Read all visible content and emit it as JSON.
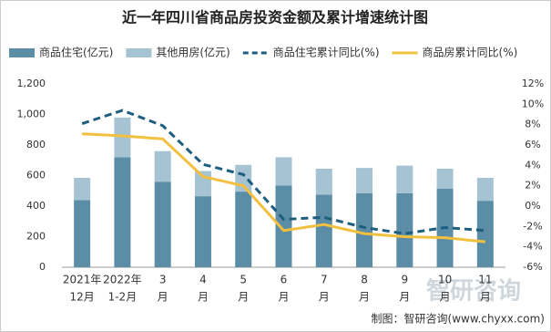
{
  "chart_data": {
    "type": "bar",
    "stacked": true,
    "title": "近一年四川省商品房投资金额及累计增速统计图",
    "source": "制图：智研咨询(www.chyxx.com)",
    "watermark": "智研咨询",
    "categories": [
      [
        "2021年",
        "12月"
      ],
      [
        "2022年",
        "1-2月"
      ],
      [
        "3",
        "月"
      ],
      [
        "4",
        "月"
      ],
      [
        "5",
        "月"
      ],
      [
        "6",
        "月"
      ],
      [
        "7",
        "月"
      ],
      [
        "8",
        "月"
      ],
      [
        "9",
        "月"
      ],
      [
        "10",
        "月"
      ],
      [
        "11",
        "月"
      ]
    ],
    "series": [
      {
        "name": "商品住宅(亿元)",
        "type": "bar",
        "color": "#5b8ea6",
        "values": [
          440,
          720,
          560,
          465,
          495,
          535,
          475,
          485,
          485,
          515,
          435
        ]
      },
      {
        "name": "其他用房(亿元)",
        "type": "bar",
        "color": "#a5c3d2",
        "values": [
          145,
          260,
          200,
          165,
          175,
          185,
          170,
          165,
          180,
          130,
          150
        ]
      },
      {
        "name": "商品住宅累计同比(%)",
        "type": "line",
        "dashed": true,
        "axis": "y2",
        "color": "#1d5e7e",
        "values": [
          8.1,
          9.4,
          7.9,
          4.1,
          3.1,
          -1.3,
          -1.1,
          -2.1,
          -2.7,
          -2.1,
          -2.4
        ]
      },
      {
        "name": "商品房累计同比(%)",
        "type": "line",
        "dashed": false,
        "axis": "y2",
        "color": "#f2c03e",
        "values": [
          7.1,
          6.9,
          6.6,
          2.9,
          2.0,
          -2.4,
          -1.8,
          -2.7,
          -3.0,
          -3.1,
          -3.5
        ]
      }
    ],
    "ylim": [
      0,
      1200
    ],
    "yticks": [
      0,
      200,
      400,
      600,
      800,
      {
        "value": 1000,
        "label": "1,000"
      },
      {
        "value": 1200,
        "label": "1,200"
      }
    ],
    "y2lim": [
      -6,
      12
    ],
    "y2ticks": [
      {
        "value": -6,
        "label": "-6%"
      },
      {
        "value": -4,
        "label": "-4%"
      },
      {
        "value": -2,
        "label": "-2%"
      },
      {
        "value": 0,
        "label": "0%"
      },
      {
        "value": 2,
        "label": "2%"
      },
      {
        "value": 4,
        "label": "4%"
      },
      {
        "value": 6,
        "label": "6%"
      },
      {
        "value": 8,
        "label": "8%"
      },
      {
        "value": 10,
        "label": "10%"
      },
      {
        "value": 12,
        "label": "12%"
      }
    ],
    "grid": false
  }
}
